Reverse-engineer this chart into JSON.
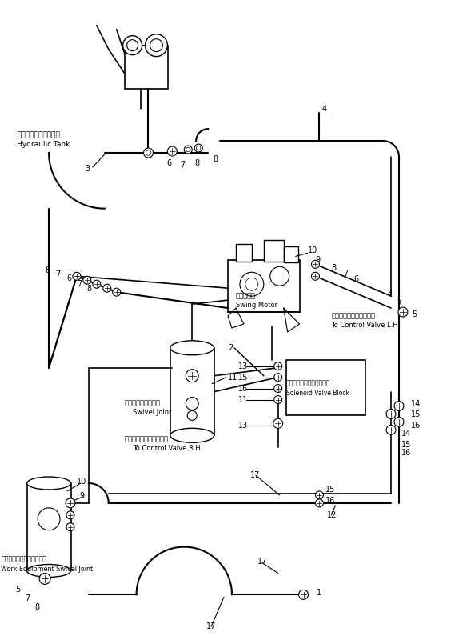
{
  "background_color": "#ffffff",
  "line_color": "#000000",
  "fig_width": 5.74,
  "fig_height": 8.0,
  "dpi": 100,
  "labels": {
    "hydraulic_tank_jp": "ハイドロリックタンク",
    "hydraulic_tank_en": "Hydraulic Tank",
    "swing_motor_jp": "旋回モータ",
    "swing_motor_en": "Swing Motor",
    "swivel_joint_jp": "スイベルジョイント",
    "swivel_joint_en": "Swivel Joint",
    "control_valve_lh_jp": "コントロールバルブ左へ",
    "control_valve_lh_en": "To Control Valve L.H.",
    "control_valve_rh_jp": "コントロールバルブ右へ",
    "control_valve_rh_en": "To Control Valve R.H.",
    "solenoid_valve_jp": "ソレノイドバルブブロック",
    "solenoid_valve_en": "Solenoid Valve Block",
    "work_equip_jp": "作業機スイベルジョイント",
    "work_equip_en": "Work Equipment Swivel Joint"
  }
}
